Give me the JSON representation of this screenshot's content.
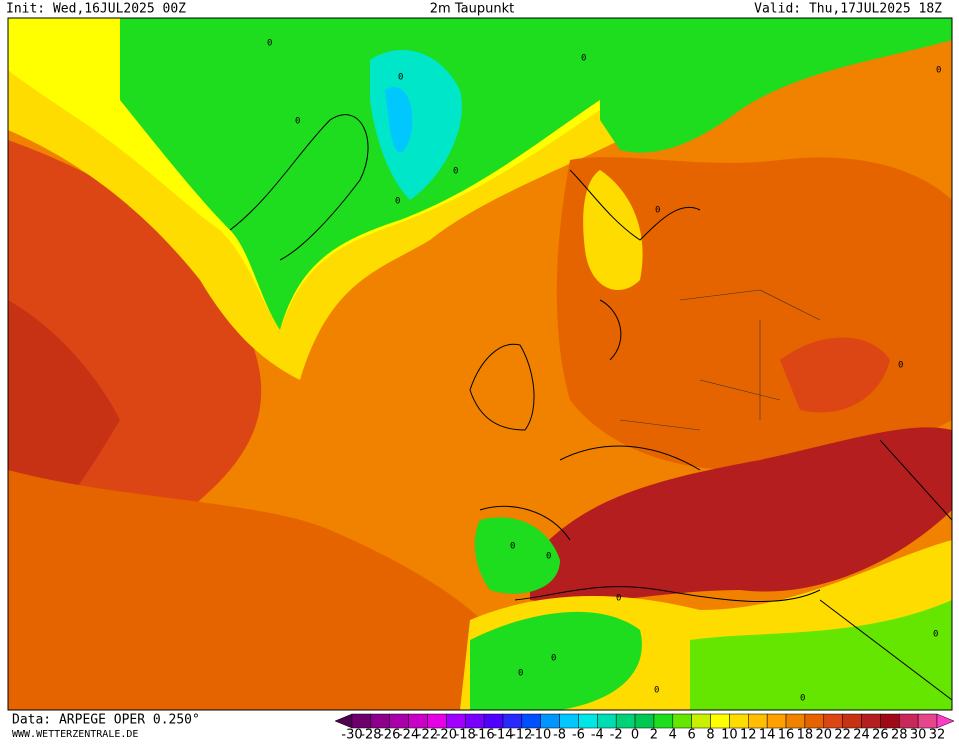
{
  "header": {
    "init": "Init: Wed,16JUL2025 00Z",
    "title": "2m Taupunkt",
    "valid": "Valid: Thu,17JUL2025 18Z"
  },
  "map": {
    "contour_label": "0"
  },
  "legend": {
    "ticks": [
      -30,
      -28,
      -26,
      -24,
      -22,
      -20,
      -18,
      -16,
      -14,
      -12,
      -10,
      -8,
      -6,
      -4,
      -2,
      0,
      2,
      4,
      6,
      8,
      10,
      12,
      14,
      16,
      18,
      20,
      22,
      24,
      26,
      28,
      30,
      32
    ],
    "colors": [
      "#500050",
      "#6e006e",
      "#8c008c",
      "#aa00aa",
      "#c800c8",
      "#e600e6",
      "#a000ff",
      "#7800ff",
      "#5000ff",
      "#2828ff",
      "#0050ff",
      "#0096ff",
      "#00c8ff",
      "#00e6e6",
      "#00dcb4",
      "#00d278",
      "#00c850",
      "#1edc1e",
      "#64e600",
      "#c8f000",
      "#ffff00",
      "#ffdc00",
      "#ffbe00",
      "#ffa000",
      "#f08200",
      "#e66400",
      "#dc4614",
      "#c83214",
      "#b41e1e",
      "#a00a14",
      "#c8285a",
      "#e6468c",
      "#ff3cc8"
    ]
  },
  "footer": {
    "data_source": "Data: ARPEGE OPER 0.250°",
    "website": "WWW.WETTERZENTRALE.DE"
  }
}
